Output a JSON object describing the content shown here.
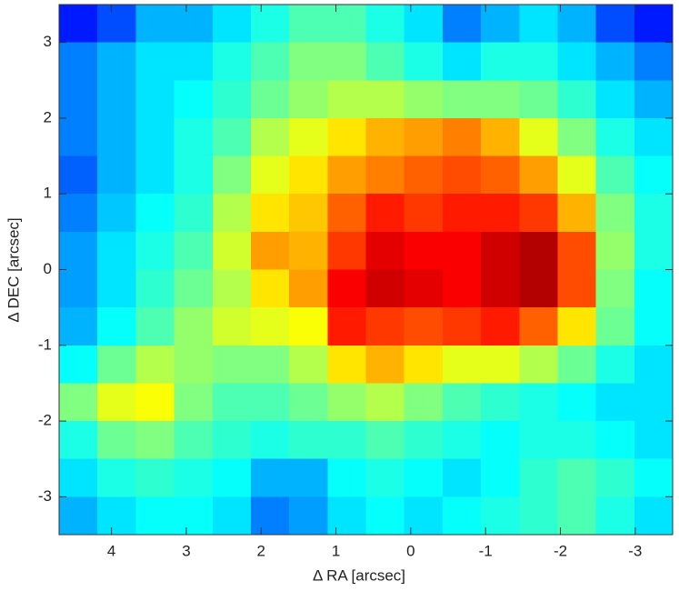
{
  "chart_data": {
    "type": "heatmap",
    "xlabel": "Δ RA [arcsec]",
    "ylabel": "Δ DEC [arcsec]",
    "xlim": [
      4.7,
      -3.5
    ],
    "ylim": [
      -3.5,
      3.5
    ],
    "xticks": [
      4,
      3,
      2,
      1,
      0,
      -1,
      -2,
      -3
    ],
    "yticks": [
      -3,
      -2,
      -1,
      0,
      1,
      2,
      3
    ],
    "colormap": "jet",
    "zlim": [
      0,
      100
    ],
    "z": [
      [
        15,
        20,
        30,
        30,
        35,
        40,
        45,
        45,
        40,
        35,
        25,
        30,
        35,
        30,
        20,
        15
      ],
      [
        25,
        30,
        35,
        35,
        40,
        45,
        50,
        50,
        45,
        40,
        35,
        40,
        40,
        35,
        30,
        25
      ],
      [
        25,
        30,
        35,
        38,
        42,
        48,
        52,
        55,
        55,
        52,
        50,
        50,
        48,
        42,
        35,
        30
      ],
      [
        25,
        30,
        35,
        40,
        45,
        55,
        60,
        65,
        70,
        72,
        75,
        70,
        60,
        50,
        40,
        35
      ],
      [
        22,
        30,
        35,
        40,
        50,
        60,
        65,
        72,
        75,
        78,
        80,
        78,
        72,
        60,
        45,
        38
      ],
      [
        25,
        32,
        38,
        42,
        55,
        65,
        68,
        78,
        85,
        82,
        85,
        85,
        82,
        70,
        50,
        40
      ],
      [
        28,
        35,
        40,
        45,
        58,
        72,
        70,
        82,
        90,
        88,
        88,
        92,
        95,
        80,
        52,
        40
      ],
      [
        28,
        35,
        42,
        48,
        55,
        65,
        72,
        88,
        92,
        90,
        88,
        92,
        95,
        80,
        50,
        38
      ],
      [
        30,
        38,
        45,
        52,
        58,
        60,
        62,
        85,
        82,
        80,
        82,
        85,
        78,
        65,
        48,
        38
      ],
      [
        38,
        48,
        55,
        52,
        50,
        50,
        55,
        65,
        70,
        65,
        60,
        60,
        55,
        48,
        40,
        35
      ],
      [
        50,
        60,
        62,
        50,
        45,
        45,
        48,
        52,
        55,
        50,
        45,
        42,
        40,
        38,
        35,
        35
      ],
      [
        40,
        48,
        50,
        45,
        42,
        40,
        42,
        42,
        45,
        42,
        40,
        38,
        40,
        40,
        38,
        35
      ],
      [
        35,
        40,
        42,
        40,
        38,
        30,
        30,
        38,
        40,
        38,
        35,
        38,
        42,
        45,
        42,
        38
      ],
      [
        30,
        35,
        38,
        38,
        35,
        25,
        28,
        35,
        38,
        35,
        38,
        40,
        42,
        45,
        40,
        35
      ]
    ]
  }
}
